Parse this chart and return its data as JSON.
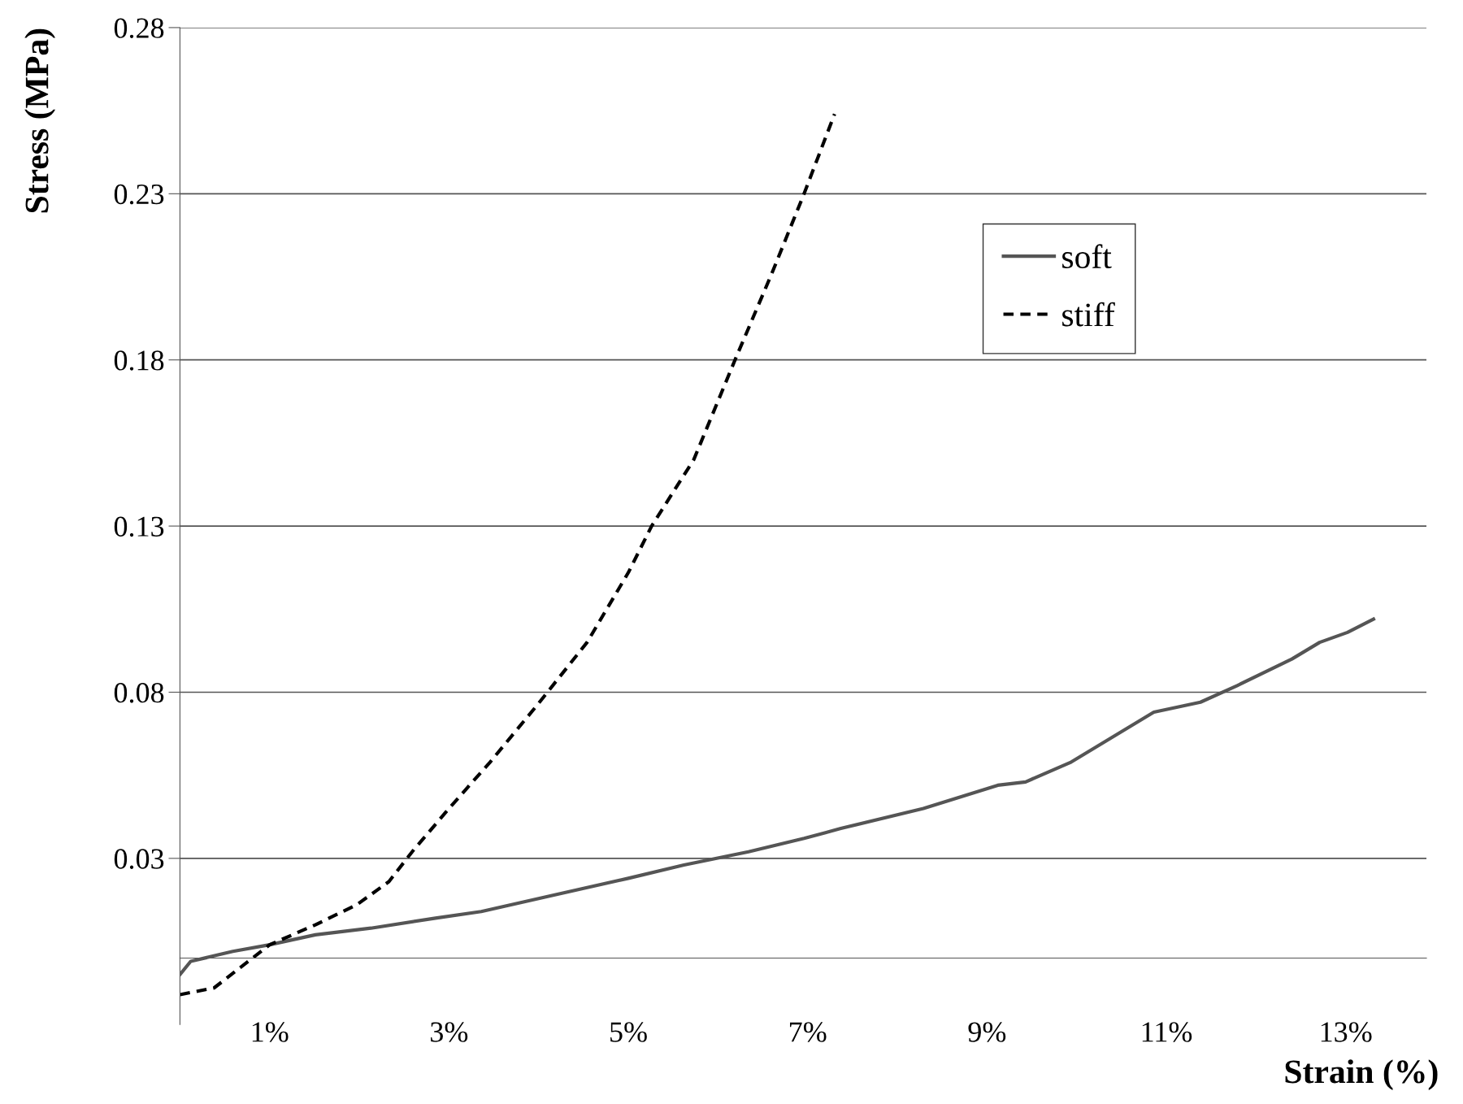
{
  "chart_data": {
    "type": "line",
    "xlabel": "Strain (%)",
    "ylabel": "Stress (MPa)",
    "xlim": [
      0,
      13.9
    ],
    "xticks": [
      {
        "value": 1,
        "label": "1%"
      },
      {
        "value": 3,
        "label": "3%"
      },
      {
        "value": 5,
        "label": "5%"
      },
      {
        "value": 7,
        "label": "7%"
      },
      {
        "value": 9,
        "label": "9%"
      },
      {
        "value": 11,
        "label": "11%"
      },
      {
        "value": 13,
        "label": "13%"
      }
    ],
    "ylim": [
      -0.02,
      0.28
    ],
    "yticks": [
      0.03,
      0.08,
      0.13,
      0.18,
      0.23,
      0.28
    ],
    "grid": "y",
    "legend": "top right",
    "series": [
      {
        "name": "soft",
        "color": "#555555",
        "line_style": "solid",
        "x": [
          0,
          0.12,
          0.59,
          1.0,
          1.51,
          2.13,
          2.85,
          3.36,
          4.18,
          5.0,
          5.62,
          6.34,
          6.96,
          7.37,
          8.29,
          9.12,
          9.43,
          9.94,
          10.86,
          11.38,
          11.79,
          12.4,
          12.71,
          13.02,
          13.31
        ],
        "values": [
          -0.005,
          -0.001,
          0.002,
          0.004,
          0.007,
          0.009,
          0.012,
          0.014,
          0.019,
          0.024,
          0.028,
          0.032,
          0.036,
          0.039,
          0.045,
          0.052,
          0.053,
          0.059,
          0.074,
          0.077,
          0.082,
          0.09,
          0.095,
          0.098,
          0.102
        ]
      },
      {
        "name": "stiff",
        "color": "#000000",
        "line_style": "dashed",
        "x": [
          0,
          0.38,
          1.0,
          1.51,
          1.97,
          2.33,
          2.59,
          3.0,
          3.46,
          3.98,
          4.54,
          5.0,
          5.26,
          5.73,
          6.19,
          6.6,
          6.96,
          7.3
        ],
        "values": [
          -0.011,
          -0.009,
          0.004,
          0.01,
          0.016,
          0.023,
          0.032,
          0.045,
          0.059,
          0.076,
          0.095,
          0.116,
          0.13,
          0.15,
          0.18,
          0.206,
          0.23,
          0.254
        ]
      }
    ]
  }
}
